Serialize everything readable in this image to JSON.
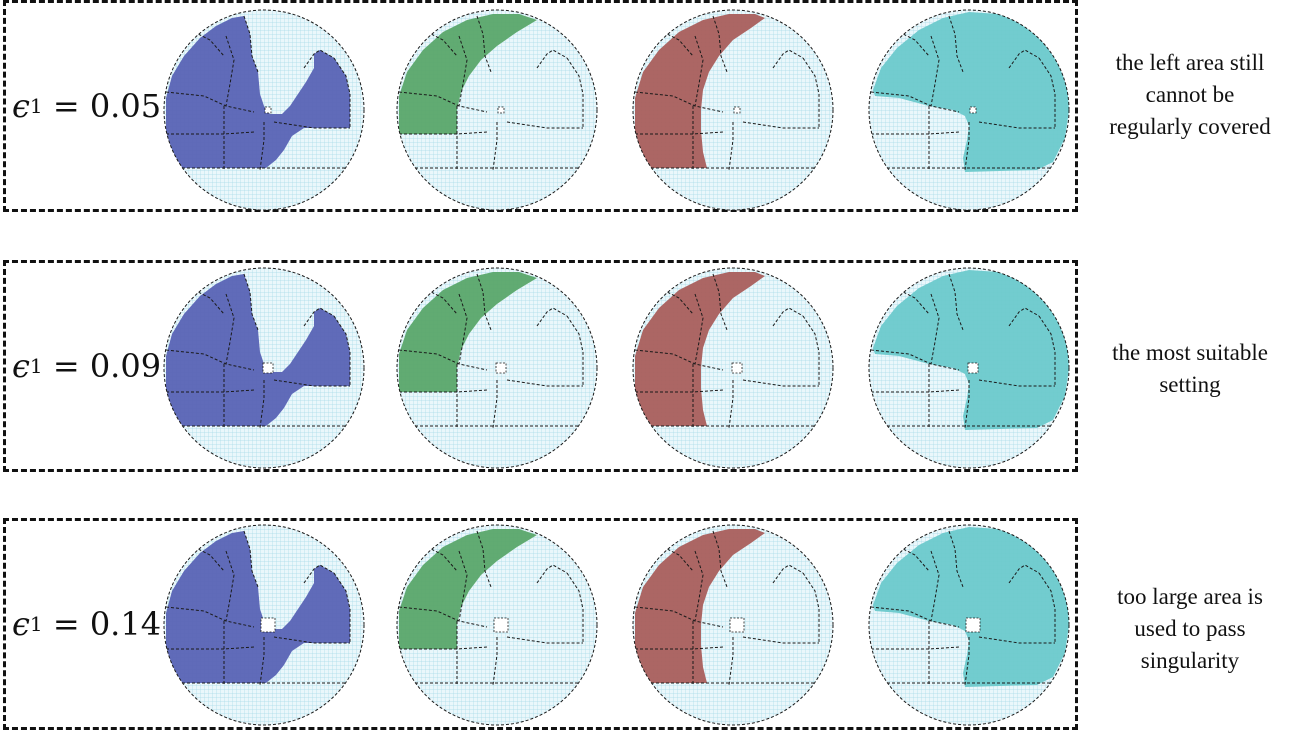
{
  "colors": {
    "grid": "#a8dbe8",
    "grid_bg": "#eaf7fb",
    "outline": "#1a1a1a",
    "blue": "#5863b5",
    "green": "#5aa76a",
    "red": "#a95e5c",
    "cyan": "#6cc9cc",
    "frame": "#111111"
  },
  "rows": [
    {
      "epsilon_symbol": "ϵ",
      "epsilon_subscript": "1",
      "equals": "=",
      "value": "0.05",
      "note_lines": [
        "the left area still",
        "cannot be",
        "regularly covered"
      ]
    },
    {
      "epsilon_symbol": "ϵ",
      "epsilon_subscript": "1",
      "equals": "=",
      "value": "0.09",
      "note_lines": [
        "the most suitable",
        "setting"
      ]
    },
    {
      "epsilon_symbol": "ϵ",
      "epsilon_subscript": "1",
      "equals": "=",
      "value": "0.14",
      "note_lines": [
        "too large area is",
        "used to pass",
        "singularity"
      ]
    }
  ],
  "diagram_regions": [
    "blue-region",
    "green-region",
    "red-region",
    "cyan-region"
  ]
}
